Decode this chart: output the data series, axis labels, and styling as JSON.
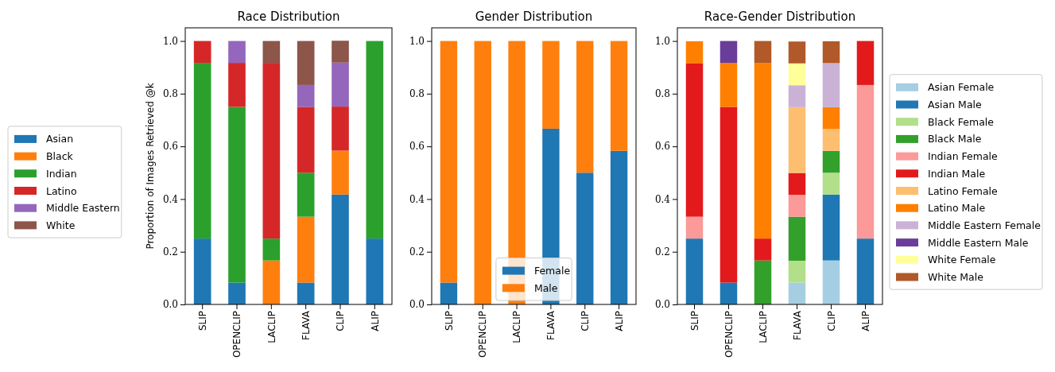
{
  "chart_data": [
    {
      "type": "bar",
      "stacked": true,
      "title": "Race Distribution",
      "ylabel": "Proportion of Images Retrieved @k",
      "categories": [
        "SLIP",
        "OPENCLIP",
        "LACLIP",
        "FLAVA",
        "CLIP",
        "ALIP"
      ],
      "ylim": [
        0,
        1.05
      ],
      "yticks": [
        {
          "value": 0,
          "label": "0.0"
        },
        {
          "value": 0.2,
          "label": "0.2"
        },
        {
          "value": 0.4,
          "label": "0.4"
        },
        {
          "value": 0.6,
          "label": "0.6"
        },
        {
          "value": 0.8,
          "label": "0.8"
        },
        {
          "value": 1,
          "label": "1.0"
        }
      ],
      "legend": "left",
      "series": [
        {
          "name": "Asian",
          "color": "#1f77b4",
          "values": [
            0.25,
            0.083,
            0,
            0.083,
            0.417,
            0.25
          ]
        },
        {
          "name": "Black",
          "color": "#ff7f0e",
          "values": [
            0,
            0,
            0.167,
            0.25,
            0.167,
            0
          ]
        },
        {
          "name": "Indian",
          "color": "#2ca02c",
          "values": [
            0.667,
            0.667,
            0.083,
            0.167,
            0,
            0.75
          ]
        },
        {
          "name": "Latino",
          "color": "#d62728",
          "values": [
            0.083,
            0.167,
            0.667,
            0.25,
            0.167,
            0
          ]
        },
        {
          "name": "Middle Eastern",
          "color": "#9467bd",
          "values": [
            0,
            0.083,
            0,
            0.083,
            0.167,
            0
          ]
        },
        {
          "name": "White",
          "color": "#8c564b",
          "values": [
            0,
            0,
            0.083,
            0.167,
            0.083,
            0
          ]
        }
      ]
    },
    {
      "type": "bar",
      "stacked": true,
      "title": "Gender Distribution",
      "categories": [
        "SLIP",
        "OPENCLIP",
        "LACLIP",
        "FLAVA",
        "CLIP",
        "ALIP"
      ],
      "ylim": [
        0,
        1.05
      ],
      "yticks": [
        {
          "value": 0,
          "label": "0.0"
        },
        {
          "value": 0.2,
          "label": "0.2"
        },
        {
          "value": 0.4,
          "label": "0.4"
        },
        {
          "value": 0.6,
          "label": "0.6"
        },
        {
          "value": 0.8,
          "label": "0.8"
        },
        {
          "value": 1,
          "label": "1.0"
        }
      ],
      "legend": "bottom",
      "series": [
        {
          "name": "Female",
          "color": "#1f77b4",
          "values": [
            0.083,
            0,
            0,
            0.667,
            0.5,
            0.583
          ]
        },
        {
          "name": "Male",
          "color": "#ff7f0e",
          "values": [
            0.917,
            1,
            1,
            0.333,
            0.5,
            0.417
          ]
        }
      ]
    },
    {
      "type": "bar",
      "stacked": true,
      "title": "Race-Gender Distribution",
      "categories": [
        "SLIP",
        "OPENCLIP",
        "LACLIP",
        "FLAVA",
        "CLIP",
        "ALIP"
      ],
      "ylim": [
        0,
        1.05
      ],
      "yticks": [
        {
          "value": 0,
          "label": "0.0"
        },
        {
          "value": 0.2,
          "label": "0.2"
        },
        {
          "value": 0.4,
          "label": "0.4"
        },
        {
          "value": 0.6,
          "label": "0.6"
        },
        {
          "value": 0.8,
          "label": "0.8"
        },
        {
          "value": 1,
          "label": "1.0"
        }
      ],
      "legend": "right",
      "series": [
        {
          "name": "Asian Female",
          "color": "#a6cee3",
          "values": [
            0,
            0,
            0,
            0.083,
            0.167,
            0
          ]
        },
        {
          "name": "Asian Male",
          "color": "#1f78b4",
          "values": [
            0.25,
            0.083,
            0,
            0,
            0.25,
            0.25
          ]
        },
        {
          "name": "Black Female",
          "color": "#b2df8a",
          "values": [
            0,
            0,
            0,
            0.083,
            0.083,
            0
          ]
        },
        {
          "name": "Black Male",
          "color": "#33a02c",
          "values": [
            0,
            0,
            0.167,
            0.167,
            0.083,
            0
          ]
        },
        {
          "name": "Indian Female",
          "color": "#fb9a99",
          "values": [
            0.083,
            0,
            0,
            0.083,
            0,
            0.583
          ]
        },
        {
          "name": "Indian Male",
          "color": "#e31a1c",
          "values": [
            0.583,
            0.667,
            0.083,
            0.083,
            0,
            0.167
          ]
        },
        {
          "name": "Latino Female",
          "color": "#fdbf6f",
          "values": [
            0,
            0,
            0,
            0.25,
            0.083,
            0
          ]
        },
        {
          "name": "Latino Male",
          "color": "#ff7f00",
          "values": [
            0.083,
            0.167,
            0.667,
            0,
            0.083,
            0
          ]
        },
        {
          "name": "Middle Eastern Female",
          "color": "#cab2d6",
          "values": [
            0,
            0,
            0,
            0.083,
            0.167,
            0
          ]
        },
        {
          "name": "Middle Eastern Male",
          "color": "#6a3d9a",
          "values": [
            0,
            0.083,
            0,
            0,
            0,
            0
          ]
        },
        {
          "name": "White Female",
          "color": "#ffff99",
          "values": [
            0,
            0,
            0,
            0.083,
            0,
            0
          ]
        },
        {
          "name": "White Male",
          "color": "#b15928",
          "values": [
            0,
            0,
            0.083,
            0.083,
            0.083,
            0
          ]
        }
      ]
    }
  ]
}
